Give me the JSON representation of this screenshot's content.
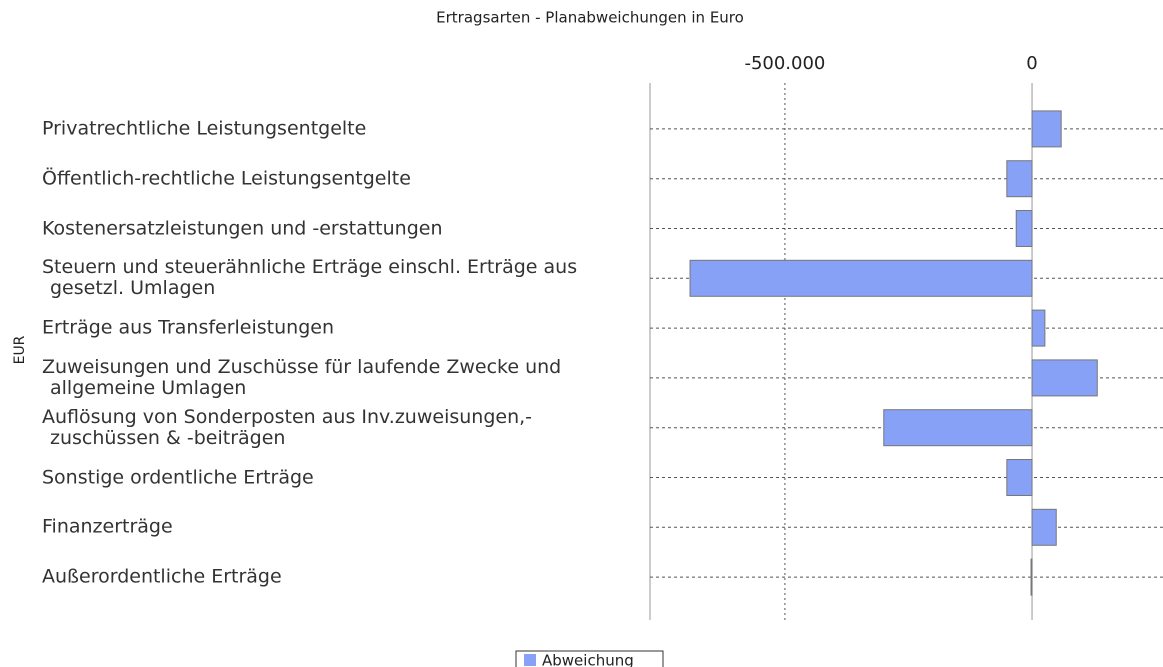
{
  "chart_data": {
    "type": "bar",
    "orientation": "horizontal",
    "title": "Ertragsarten - Planabweichungen in Euro",
    "ylabel": "EUR",
    "categories": [
      "Privatrechtliche Leistungsentgelte",
      "Öffentlich-rechtliche Leistungsentgelte",
      "Kostenersatzleistungen und -erstattungen",
      "Steuern und steuerähnliche Erträge einschl. Erträge aus gesetzl. Umlagen",
      "Erträge aus Transferleistungen",
      "Zuweisungen und Zuschüsse für laufende Zwecke und allgemeine Umlagen",
      "Auflösung von Sonderposten aus Inv.zuweisungen,- zuschüssen & -beiträgen",
      "Sonstige ordentliche Erträge",
      "Finanzerträge",
      "Außerordentliche Erträge"
    ],
    "series": [
      {
        "name": "Abweichung",
        "color": "#87a1f7",
        "values": [
          59000,
          -51000,
          -32000,
          -692000,
          26000,
          132000,
          -300000,
          -51000,
          49000,
          -2000
        ]
      }
    ],
    "xlim": [
      -773000,
      265000
    ],
    "xticks": [
      {
        "value": -500000,
        "label": "-500.000"
      },
      0
    ],
    "grid": true
  }
}
